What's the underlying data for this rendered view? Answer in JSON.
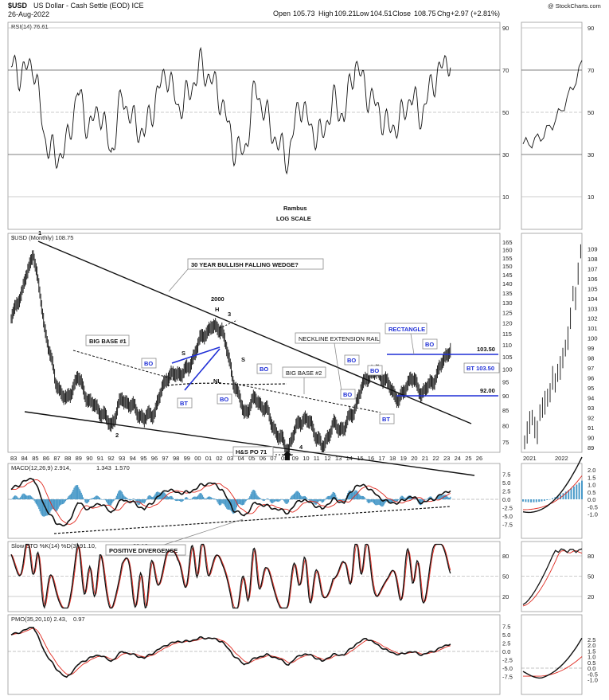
{
  "header": {
    "symbol": "$USD",
    "description": "US Dollar - Cash Settle (EOD) ICE",
    "date": "26-Aug-2022",
    "ohlc": {
      "open_label": "Open",
      "open": "105.73",
      "high_label": "High",
      "high": "109.21",
      "low_label": "Low",
      "low": "104.51",
      "close_label": "Close",
      "close": "108.75",
      "chg_label": "Chg",
      "chg": "+2.97 (+2.81%)"
    },
    "credit": "@ StockCharts.com"
  },
  "rsi": {
    "label": "RSI(14) 76.61",
    "ticks": [
      "90",
      "70",
      "50",
      "30",
      "10"
    ],
    "levels": [
      90,
      70,
      50,
      30,
      10
    ],
    "text1": "Rambus",
    "text2": "LOG SCALE"
  },
  "price": {
    "label": "$USD (Monthly) 108.75",
    "ticks": [
      "165",
      "160",
      "155",
      "150",
      "145",
      "140",
      "135",
      "130",
      "125",
      "120",
      "115",
      "110",
      "105",
      "100",
      "95",
      "90",
      "85",
      "80",
      "75"
    ],
    "zoom_ticks": [
      "109",
      "108",
      "107",
      "106",
      "105",
      "104",
      "103",
      "102",
      "101",
      "100",
      "99",
      "98",
      "97",
      "96",
      "95",
      "94",
      "93",
      "92",
      "91",
      "90",
      "89"
    ],
    "years": [
      "83",
      "84",
      "85",
      "86",
      "87",
      "88",
      "89",
      "90",
      "91",
      "92",
      "93",
      "94",
      "95",
      "96",
      "97",
      "98",
      "99",
      "00",
      "01",
      "02",
      "03",
      "04",
      "05",
      "06",
      "07",
      "08",
      "09",
      "10",
      "11",
      "12",
      "13",
      "14",
      "15",
      "16",
      "17",
      "18",
      "19",
      "20",
      "21",
      "22",
      "23",
      "24",
      "25",
      "26"
    ],
    "zoom_years": [
      "2021",
      "2022"
    ]
  },
  "annotations": {
    "wedge": "30 YEAR BULLISH FALLING WEDGE?",
    "big_base1": "BIG BASE #1",
    "big_base2": "BIG BASE #2",
    "neckline_ext": "NECKLINE EXTENSION RAIL",
    "rectangle": "RECTANGLE",
    "bo": "BO",
    "bt": "BT",
    "nl": "NL",
    "s": "S",
    "h": "H",
    "y2000": "2000",
    "n1": "1",
    "n2": "2",
    "n3": "3",
    "n4": "4",
    "hs_po": "H&S PO 71",
    "lvl_103": "103.50",
    "bt_103": "BT 103.50",
    "lvl_92": "92.00",
    "pos_div": "POSITIVE DIVERGENCE"
  },
  "macd": {
    "label": "MACD(12,26,9) 2.914, ",
    "v1": "1.343",
    "v2": "1.570",
    "ticks": [
      "7.5",
      "5.0",
      "2.5",
      "0.0",
      "-2.5",
      "-5.0",
      "-7.5"
    ],
    "zoom_ticks": [
      "2.0",
      "1.5",
      "1.0",
      "0.5",
      "0.0",
      "-0.5",
      "-1.0"
    ]
  },
  "sto": {
    "label": "Slow STO %K(14) %D(3) 91.10, ",
    "v1": "88.12",
    "ticks": [
      "80",
      "50",
      "20"
    ]
  },
  "pmo": {
    "label": "PMO(35,20,10) 2.43, ",
    "v1": "0.97",
    "ticks": [
      "7.5",
      "5.0",
      "2.5",
      "0.0",
      "-2.5",
      "-5.0",
      "-7.5"
    ],
    "zoom_ticks": [
      "2.5",
      "2.0",
      "1.5",
      "1.0",
      "0.5",
      "0.0",
      "-0.5",
      "-1.0"
    ]
  },
  "colors": {
    "price": "#111111",
    "signal": "#e0281e",
    "hist": "#4a9ac9",
    "rsi_fill": "#4f7a53",
    "rsi_low_fill": "#8c5a5a",
    "annotation_blue": "#1f2fd6",
    "grid": "#bdbdbd"
  },
  "chart_data": [
    {
      "type": "line",
      "title": "$USD (Monthly) 108.75",
      "xlabel": "",
      "ylabel": "",
      "log_scale": true,
      "ylim": [
        72,
        167
      ],
      "x": [
        1983,
        1984,
        1985,
        1986,
        1987,
        1988,
        1989,
        1990,
        1991,
        1992,
        1993,
        1994,
        1995,
        1996,
        1997,
        1998,
        1999,
        2000,
        2001,
        2002,
        2003,
        2004,
        2005,
        2006,
        2007,
        2008,
        2009,
        2010,
        2011,
        2012,
        2013,
        2014,
        2015,
        2016,
        2017,
        2018,
        2019,
        2020,
        2021,
        2022.6
      ],
      "series": [
        {
          "name": "$USD",
          "values": [
            122,
            136,
            158,
            118,
            95,
            88,
            97,
            88,
            85,
            80,
            89,
            86,
            82,
            85,
            97,
            98,
            100,
            112,
            118,
            117,
            96,
            84,
            89,
            85,
            77,
            73,
            82,
            81,
            73,
            80,
            79,
            86,
            97,
            99,
            94,
            88,
            97,
            91,
            95,
            108.75
          ]
        }
      ]
    },
    {
      "type": "line",
      "title": "RSI(14) 76.61",
      "ylim": [
        0,
        100
      ],
      "x": [
        1983,
        1984,
        1985,
        1986,
        1987,
        1988,
        1989,
        1990,
        1991,
        1992,
        1993,
        1994,
        1995,
        1996,
        1997,
        1998,
        1999,
        2000,
        2001,
        2002,
        2003,
        2004,
        2005,
        2006,
        2007,
        2008,
        2009,
        2010,
        2011,
        2012,
        2013,
        2014,
        2015,
        2016,
        2017,
        2018,
        2019,
        2020,
        2021,
        2022.6
      ],
      "series": [
        {
          "name": "RSI",
          "values": [
            72,
            68,
            74,
            38,
            28,
            34,
            60,
            42,
            52,
            30,
            58,
            45,
            40,
            56,
            70,
            52,
            58,
            72,
            66,
            55,
            34,
            30,
            62,
            48,
            35,
            28,
            56,
            42,
            38,
            55,
            48,
            74,
            60,
            52,
            42,
            45,
            58,
            48,
            65,
            76.61
          ]
        }
      ]
    },
    {
      "type": "line",
      "title": "MACD(12,26,9) 2.914, 1.343, 1.570",
      "ylim": [
        -9,
        9
      ],
      "x": [
        1983,
        1984,
        1985,
        1986,
        1987,
        1988,
        1989,
        1990,
        1991,
        1992,
        1993,
        1994,
        1995,
        1996,
        1997,
        1998,
        1999,
        2000,
        2001,
        2002,
        2003,
        2004,
        2005,
        2006,
        2007,
        2008,
        2009,
        2010,
        2011,
        2012,
        2013,
        2014,
        2015,
        2016,
        2017,
        2018,
        2019,
        2020,
        2021,
        2022.6
      ],
      "series": [
        {
          "name": "MACD",
          "values": [
            3,
            5,
            6.5,
            -2,
            -7,
            -8,
            -1,
            -3,
            -1,
            -4,
            0,
            -1,
            -3,
            0,
            3,
            2,
            2,
            4,
            5,
            3,
            -3,
            -5,
            -1,
            -2,
            -3,
            -4,
            0,
            -1,
            -3,
            0,
            -1,
            4,
            4,
            1,
            -1,
            -1,
            1,
            -1,
            0,
            2.914
          ]
        }
      ]
    },
    {
      "type": "line",
      "title": "Slow STO %K(14) %D(3) 91.10, 88.12",
      "ylim": [
        0,
        100
      ],
      "x": [
        1983,
        1984,
        1985,
        1986,
        1987,
        1988,
        1989,
        1990,
        1991,
        1992,
        1993,
        1994,
        1995,
        1996,
        1997,
        1998,
        1999,
        2000,
        2001,
        2002,
        2003,
        2004,
        2005,
        2006,
        2007,
        2008,
        2009,
        2010,
        2011,
        2012,
        2013,
        2014,
        2015,
        2016,
        2017,
        2018,
        2019,
        2020,
        2021,
        2022.6
      ],
      "series": [
        {
          "name": "%K",
          "values": [
            88,
            90,
            92,
            20,
            10,
            15,
            80,
            30,
            60,
            15,
            70,
            25,
            15,
            60,
            92,
            50,
            70,
            92,
            88,
            40,
            10,
            12,
            80,
            30,
            15,
            10,
            70,
            30,
            20,
            75,
            40,
            95,
            90,
            40,
            20,
            30,
            85,
            20,
            80,
            91.1
          ]
        }
      ]
    },
    {
      "type": "line",
      "title": "PMO(35,20,10) 2.43, 0.97",
      "ylim": [
        -9,
        9
      ],
      "x": [
        1983,
        1984,
        1985,
        1986,
        1987,
        1988,
        1989,
        1990,
        1991,
        1992,
        1993,
        1994,
        1995,
        1996,
        1997,
        1998,
        1999,
        2000,
        2001,
        2002,
        2003,
        2004,
        2005,
        2006,
        2007,
        2008,
        2009,
        2010,
        2011,
        2012,
        2013,
        2014,
        2015,
        2016,
        2017,
        2018,
        2019,
        2020,
        2021,
        2022.6
      ],
      "series": [
        {
          "name": "PMO",
          "values": [
            5,
            6,
            7.5,
            0,
            -5,
            -8,
            -4,
            -2,
            -1,
            -3,
            0,
            -1,
            -2,
            0,
            2,
            3,
            3,
            4,
            4,
            3,
            -1,
            -4,
            -2,
            -1,
            -2,
            -4,
            -1,
            -1,
            -3,
            -1,
            -1,
            2,
            4,
            2,
            0,
            -1,
            0,
            -1,
            0,
            2.43
          ]
        }
      ]
    }
  ]
}
